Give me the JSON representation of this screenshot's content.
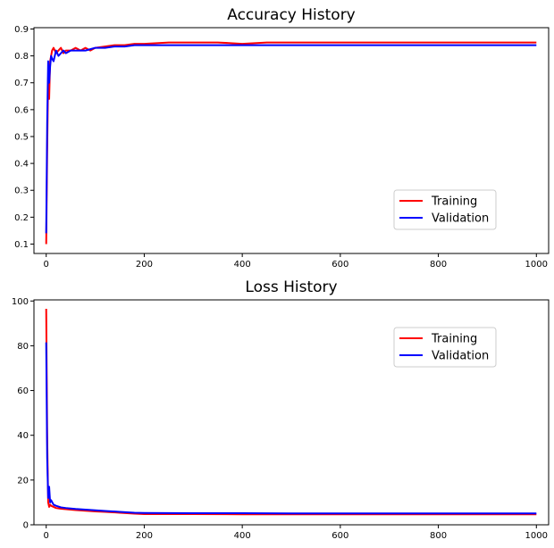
{
  "chart_data": [
    {
      "type": "line",
      "title": "Accuracy History",
      "xlabel": "",
      "ylabel": "",
      "xlim": [
        -25,
        1025
      ],
      "ylim": [
        0.065,
        0.905
      ],
      "xticks": [
        0,
        200,
        400,
        600,
        800,
        1000
      ],
      "yticks": [
        0.1,
        0.2,
        0.3,
        0.4,
        0.5,
        0.6,
        0.7,
        0.8,
        0.9
      ],
      "grid": false,
      "legend_position": "lower-right",
      "series": [
        {
          "name": "Training",
          "color": "#ff0000",
          "x": [
            0,
            2,
            4,
            6,
            8,
            10,
            12,
            15,
            20,
            25,
            30,
            35,
            40,
            50,
            60,
            70,
            80,
            90,
            100,
            120,
            140,
            160,
            180,
            200,
            250,
            300,
            350,
            400,
            450,
            500,
            550,
            600,
            650,
            700,
            750,
            800,
            850,
            900,
            950,
            1000
          ],
          "values": [
            0.1,
            0.45,
            0.72,
            0.64,
            0.78,
            0.8,
            0.82,
            0.83,
            0.81,
            0.82,
            0.83,
            0.81,
            0.82,
            0.82,
            0.83,
            0.82,
            0.83,
            0.82,
            0.83,
            0.835,
            0.84,
            0.84,
            0.845,
            0.845,
            0.85,
            0.85,
            0.85,
            0.845,
            0.85,
            0.85,
            0.85,
            0.85,
            0.85,
            0.85,
            0.85,
            0.85,
            0.85,
            0.85,
            0.85,
            0.85
          ]
        },
        {
          "name": "Validation",
          "color": "#0000ff",
          "x": [
            0,
            2,
            4,
            6,
            8,
            10,
            12,
            15,
            20,
            25,
            30,
            35,
            40,
            50,
            60,
            70,
            80,
            90,
            100,
            120,
            140,
            160,
            180,
            200,
            250,
            300,
            350,
            400,
            450,
            500,
            550,
            600,
            650,
            700,
            750,
            800,
            850,
            900,
            950,
            1000
          ],
          "values": [
            0.14,
            0.55,
            0.78,
            0.7,
            0.76,
            0.8,
            0.79,
            0.78,
            0.82,
            0.8,
            0.81,
            0.82,
            0.81,
            0.82,
            0.82,
            0.82,
            0.82,
            0.825,
            0.83,
            0.83,
            0.835,
            0.835,
            0.84,
            0.84,
            0.84,
            0.84,
            0.84,
            0.84,
            0.84,
            0.84,
            0.84,
            0.84,
            0.84,
            0.84,
            0.84,
            0.84,
            0.84,
            0.84,
            0.84,
            0.84
          ]
        }
      ]
    },
    {
      "type": "line",
      "title": "Loss History",
      "xlabel": "",
      "ylabel": "",
      "xlim": [
        -25,
        1025
      ],
      "ylim": [
        0,
        100.5
      ],
      "xticks": [
        0,
        200,
        400,
        600,
        800,
        1000
      ],
      "yticks": [
        0,
        20,
        40,
        60,
        80,
        100
      ],
      "grid": false,
      "legend_position": "upper-right",
      "series": [
        {
          "name": "Training",
          "color": "#ff0000",
          "x": [
            0,
            2,
            4,
            6,
            8,
            10,
            15,
            20,
            30,
            40,
            50,
            60,
            80,
            100,
            120,
            150,
            180,
            200,
            300,
            400,
            500,
            600,
            700,
            800,
            900,
            1000
          ],
          "values": [
            96.5,
            40,
            10,
            8,
            9,
            8.5,
            8,
            7.5,
            7.2,
            7,
            6.8,
            6.6,
            6.3,
            6,
            5.8,
            5.4,
            5,
            4.8,
            4.8,
            4.7,
            4.7,
            4.7,
            4.7,
            4.7,
            4.7,
            4.7
          ]
        },
        {
          "name": "Validation",
          "color": "#0000ff",
          "x": [
            0,
            2,
            4,
            6,
            8,
            10,
            15,
            20,
            30,
            40,
            50,
            60,
            80,
            100,
            120,
            150,
            180,
            200,
            300,
            400,
            500,
            600,
            700,
            800,
            900,
            1000
          ],
          "values": [
            81.5,
            30,
            12,
            17,
            10,
            11,
            9,
            8.5,
            7.8,
            7.5,
            7.3,
            7.1,
            6.8,
            6.5,
            6.2,
            5.8,
            5.4,
            5.3,
            5.2,
            5.2,
            5.1,
            5.1,
            5.1,
            5.1,
            5.1,
            5.1
          ]
        }
      ]
    }
  ]
}
